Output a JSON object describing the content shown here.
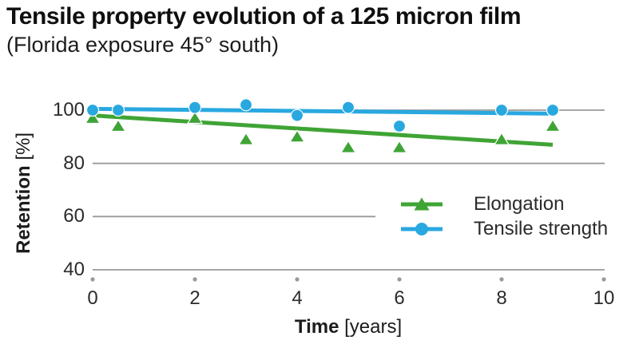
{
  "chart_data": {
    "type": "scatter",
    "title": "Tensile property evolution of a 125 micron film",
    "subtitle": "(Florida exposure 45° south)",
    "xlabel": "Time",
    "xlabel_unit": "[years]",
    "ylabel": "Retention",
    "ylabel_unit": "[%]",
    "xlim": [
      0,
      10.3
    ],
    "ylim": [
      36,
      105
    ],
    "xticks": [
      0,
      2,
      4,
      6,
      8,
      10
    ],
    "yticks": [
      100,
      80,
      60,
      40
    ],
    "grid": "horizontal gridlines on; 60-line truncated by legend",
    "gridline_color": "#999999",
    "legend_position": "middle-right",
    "text_color": "#2b2b2b",
    "series": [
      {
        "name": "Elongation",
        "marker": "triangle",
        "color": "#3fa435",
        "points": [
          [
            0,
            97
          ],
          [
            0.5,
            94
          ],
          [
            2,
            97
          ],
          [
            3,
            89
          ],
          [
            4,
            90
          ],
          [
            5,
            86
          ],
          [
            6,
            86
          ],
          [
            8,
            89
          ],
          [
            9,
            94
          ]
        ],
        "trend": [
          [
            0,
            98
          ],
          [
            9,
            87
          ]
        ]
      },
      {
        "name": "Tensile strength",
        "marker": "circle",
        "color": "#29a8e0",
        "points": [
          [
            0,
            100
          ],
          [
            0.5,
            100
          ],
          [
            2,
            101
          ],
          [
            3,
            102
          ],
          [
            4,
            98
          ],
          [
            5,
            101
          ],
          [
            6,
            94
          ],
          [
            8,
            100
          ],
          [
            9,
            100
          ]
        ],
        "trend": [
          [
            0,
            100.5
          ],
          [
            9,
            98.7
          ]
        ]
      }
    ]
  }
}
